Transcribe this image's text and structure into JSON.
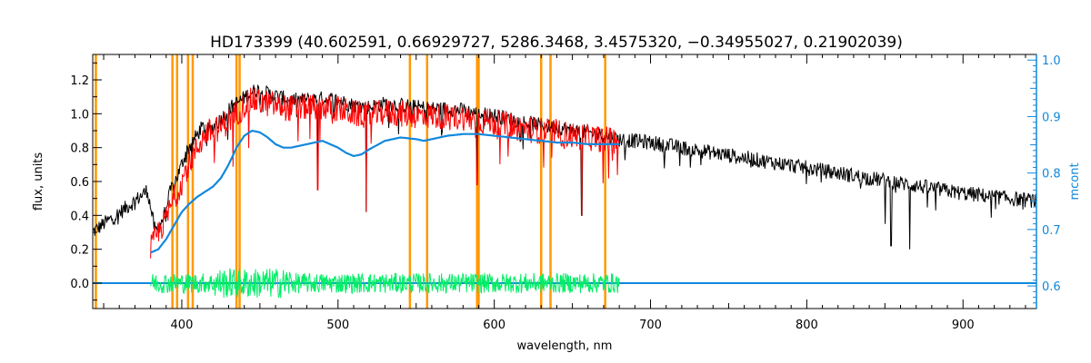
{
  "chart_data": {
    "type": "line",
    "title": "HD173399   (40.602591, 0.66929727, 5286.3468, 3.4575320, −0.34955027, 0.21902039)",
    "xlabel": "wavelength, nm",
    "ylabel": "flux, units",
    "ylabel_right": "mcont",
    "xlim": [
      343,
      947
    ],
    "ylim": [
      -0.15,
      1.35
    ],
    "ylim_right": [
      0.56,
      1.01
    ],
    "xticks": [
      400,
      500,
      600,
      700,
      800,
      900
    ],
    "yticks": [
      0.0,
      0.2,
      0.4,
      0.6,
      0.8,
      1.0,
      1.2
    ],
    "yticks_right": [
      0.6,
      0.7,
      0.8,
      0.9,
      1.0
    ],
    "xtick_labels": [
      "400",
      "500",
      "600",
      "700",
      "800",
      "900"
    ],
    "ytick_labels": [
      "0.0",
      "0.2",
      "0.4",
      "0.6",
      "0.8",
      "1.0",
      "1.2"
    ],
    "ytick_right_labels": [
      "0.6",
      "0.7",
      "0.8",
      "0.9",
      "1.0"
    ],
    "grid": false,
    "vlines": [
      345,
      394,
      397,
      404,
      407,
      435,
      437,
      546,
      557,
      589,
      590,
      630,
      636,
      671
    ],
    "series": [
      {
        "color": "#000000",
        "role": "observed spectrum",
        "x": [
          343,
          350,
          358,
          365,
          372,
          378,
          383,
          388,
          393,
          398,
          403,
          408,
          413,
          418,
          423,
          428,
          433,
          438,
          443,
          448,
          455,
          462,
          470,
          480,
          490,
          500,
          510,
          520,
          530,
          540,
          550,
          560,
          570,
          580,
          590,
          600,
          610,
          620,
          630,
          640,
          650,
          660,
          670,
          680,
          690,
          700,
          720,
          740,
          760,
          780,
          800,
          820,
          840,
          860,
          880,
          900,
          920,
          940,
          947
        ],
        "y": [
          0.3,
          0.35,
          0.4,
          0.45,
          0.5,
          0.55,
          0.3,
          0.38,
          0.55,
          0.65,
          0.78,
          0.85,
          0.92,
          0.9,
          0.95,
          1.0,
          1.05,
          1.08,
          1.12,
          1.14,
          1.12,
          1.1,
          1.08,
          1.08,
          1.09,
          1.08,
          1.05,
          1.04,
          1.06,
          1.05,
          1.04,
          1.03,
          1.03,
          1.02,
          1.0,
          0.99,
          0.97,
          0.95,
          0.93,
          0.92,
          0.9,
          0.89,
          0.87,
          0.85,
          0.84,
          0.83,
          0.8,
          0.77,
          0.74,
          0.71,
          0.68,
          0.65,
          0.62,
          0.59,
          0.56,
          0.53,
          0.51,
          0.49,
          0.49
        ]
      },
      {
        "color": "#ff0000",
        "role": "model spectrum",
        "x": [
          380,
          385,
          390,
          395,
          400,
          405,
          410,
          415,
          420,
          425,
          430,
          435,
          440,
          445,
          450,
          460,
          470,
          480,
          490,
          500,
          510,
          520,
          530,
          540,
          550,
          560,
          570,
          580,
          590,
          600,
          610,
          620,
          630,
          640,
          650,
          660,
          670,
          680
        ],
        "y": [
          0.2,
          0.3,
          0.38,
          0.5,
          0.6,
          0.72,
          0.8,
          0.88,
          0.9,
          0.92,
          0.96,
          1.0,
          1.05,
          1.08,
          1.07,
          1.05,
          1.03,
          1.04,
          1.04,
          1.03,
          1.0,
          0.99,
          1.01,
          1.0,
          0.99,
          0.99,
          0.98,
          0.98,
          0.96,
          0.95,
          0.93,
          0.91,
          0.9,
          0.89,
          0.87,
          0.86,
          0.85,
          0.84
        ]
      },
      {
        "color": "#1188dd",
        "role": "continuum",
        "x": [
          380,
          385,
          390,
          395,
          400,
          405,
          410,
          415,
          420,
          425,
          430,
          435,
          440,
          445,
          450,
          455,
          460,
          465,
          470,
          475,
          480,
          490,
          500,
          505,
          510,
          515,
          520,
          530,
          540,
          550,
          555,
          560,
          570,
          580,
          590,
          600,
          610,
          620,
          630,
          640,
          650,
          660,
          670,
          680
        ],
        "y": [
          0.18,
          0.2,
          0.26,
          0.34,
          0.42,
          0.47,
          0.51,
          0.54,
          0.57,
          0.62,
          0.7,
          0.8,
          0.87,
          0.9,
          0.89,
          0.86,
          0.82,
          0.8,
          0.8,
          0.81,
          0.82,
          0.84,
          0.8,
          0.77,
          0.75,
          0.76,
          0.79,
          0.84,
          0.86,
          0.85,
          0.84,
          0.85,
          0.87,
          0.88,
          0.88,
          0.87,
          0.86,
          0.85,
          0.84,
          0.83,
          0.83,
          0.82,
          0.82,
          0.82
        ]
      },
      {
        "color": "#1188dd",
        "role": "baseline",
        "x": [
          343,
          380,
          680,
          947
        ],
        "y": [
          0.0,
          0.0,
          0.0,
          0.0
        ]
      },
      {
        "color": "#00ee66",
        "role": "residuals",
        "x": [
          380,
          680
        ],
        "amplitude": 0.06
      }
    ],
    "absorption_dips": [
      {
        "x": 487,
        "y": 0.55
      },
      {
        "x": 518,
        "y": 0.42
      },
      {
        "x": 589,
        "y": 0.58
      },
      {
        "x": 656,
        "y": 0.4
      },
      {
        "x": 850,
        "y": 0.35
      },
      {
        "x": 854,
        "y": 0.22
      },
      {
        "x": 866,
        "y": 0.2
      }
    ]
  }
}
